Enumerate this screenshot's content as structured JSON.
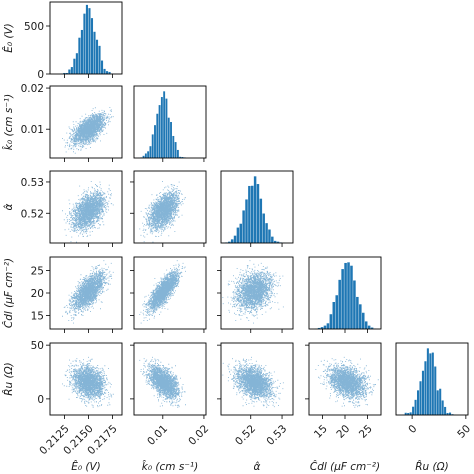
{
  "chart_data": {
    "type": "scatter",
    "kind": "corner-plot",
    "accent_color": "#1f77b4",
    "parameters": [
      {
        "key": "E0",
        "label": "Ê₀ (V)",
        "mean": 0.215,
        "sd": 0.0008,
        "range": [
          0.211,
          0.2185
        ],
        "ticks": [
          0.2125,
          0.215,
          0.2175
        ],
        "tick_labels": [
          "0.2125",
          "0.2150",
          "0.2175"
        ],
        "hist_ticks": [
          0,
          500
        ],
        "hist_tick_labels": [
          "0",
          "500"
        ],
        "hist_max": 750
      },
      {
        "key": "k0",
        "label": "k̂₀ (cm s⁻¹)",
        "mean": 0.0101,
        "sd": 0.0017,
        "range": [
          0.003,
          0.0205
        ],
        "ticks": [
          0.01,
          0.02
        ],
        "tick_labels": [
          "0.01",
          "0.02"
        ]
      },
      {
        "key": "alpha",
        "label": "α̂",
        "mean": 0.521,
        "sd": 0.0028,
        "range": [
          0.5105,
          0.5335
        ],
        "ticks": [
          0.52,
          0.53
        ],
        "tick_labels": [
          "0.52",
          "0.53"
        ]
      },
      {
        "key": "Cdl",
        "label": "Ĉdl (μF cm⁻²)",
        "mean": 20.5,
        "sd": 2.0,
        "range": [
          12,
          28
        ],
        "ticks": [
          15,
          20,
          25
        ],
        "tick_labels": [
          "15",
          "20",
          "25"
        ]
      },
      {
        "key": "Ru",
        "label": "R̂u (Ω)",
        "mean": 16,
        "sd": 7,
        "range": [
          -15,
          52
        ],
        "ticks": [
          0,
          50
        ],
        "tick_labels": [
          "0",
          "50"
        ]
      }
    ],
    "correlations": {
      "E0-k0": 0.6,
      "E0-alpha": 0.45,
      "E0-Cdl": 0.65,
      "E0-Ru": -0.2,
      "k0-alpha": 0.45,
      "k0-Cdl": 0.8,
      "k0-Ru": -0.5,
      "alpha-Cdl": 0.2,
      "alpha-Ru": -0.35,
      "Cdl-Ru": -0.3
    },
    "samples": 2500
  }
}
